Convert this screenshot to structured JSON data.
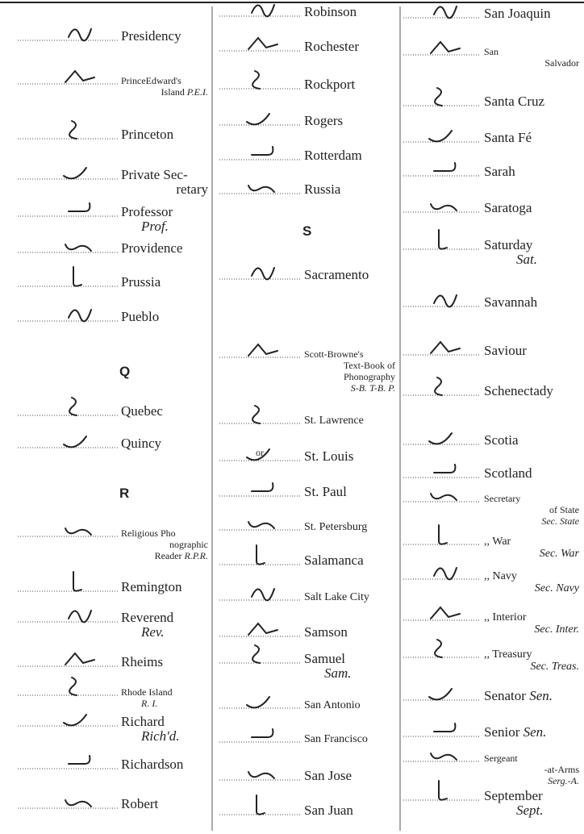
{
  "columns": [
    {
      "items": [
        {
          "lines": [
            "Presidency"
          ]
        },
        {
          "lines": [
            "PrinceEdward's",
            "Island"
          ],
          "abbr": "P.E.I."
        },
        {
          "lines": [
            "Princeton"
          ]
        },
        {
          "lines": [
            "Private Sec-",
            "retary"
          ]
        },
        {
          "lines": [
            "Professor"
          ],
          "abbr": "Prof."
        },
        {
          "lines": [
            "Providence"
          ]
        },
        {
          "lines": [
            "Prussia"
          ]
        },
        {
          "lines": [
            "Pueblo"
          ]
        },
        {
          "heading": "Q"
        },
        {
          "lines": [
            "Quebec"
          ]
        },
        {
          "lines": [
            "Quincy"
          ]
        },
        {
          "heading": "R"
        },
        {
          "lines": [
            "Religious Pho",
            "nographic",
            "Reader"
          ],
          "abbr": "R.P.R."
        },
        {
          "lines": [
            "Remington"
          ]
        },
        {
          "lines": [
            "Reverend"
          ],
          "abbr": "Rev."
        },
        {
          "lines": [
            "Rheims"
          ]
        },
        {
          "lines": [
            "Rhode Island"
          ],
          "abbr": "R. I."
        },
        {
          "lines": [
            "Richard"
          ],
          "abbr": "Rich'd."
        },
        {
          "lines": [
            "Richardson"
          ]
        },
        {
          "lines": [
            "Robert"
          ]
        }
      ]
    },
    {
      "items": [
        {
          "lines": [
            "Robinson"
          ]
        },
        {
          "lines": [
            "Rochester"
          ]
        },
        {
          "lines": [
            "Rockport"
          ]
        },
        {
          "lines": [
            "Rogers"
          ]
        },
        {
          "lines": [
            "Rotterdam"
          ]
        },
        {
          "lines": [
            "Russia"
          ]
        },
        {
          "heading": "S"
        },
        {
          "lines": [
            "Sacramento"
          ]
        },
        {
          "lines": [
            "Scott-Browne's",
            "Text-Book of",
            "Phonography"
          ],
          "abbr": "S-B. T-B. P."
        },
        {
          "lines": [
            "St. Lawrence"
          ]
        },
        {
          "lines": [
            "St. Louis"
          ],
          "note": "or"
        },
        {
          "lines": [
            "St. Paul"
          ]
        },
        {
          "lines": [
            "St. Petersburg"
          ]
        },
        {
          "lines": [
            "Salamanca"
          ]
        },
        {
          "lines": [
            "Salt Lake City"
          ]
        },
        {
          "lines": [
            "Samson"
          ]
        },
        {
          "lines": [
            "Samuel"
          ],
          "abbr": "Sam."
        },
        {
          "lines": [
            "San Antonio"
          ]
        },
        {
          "lines": [
            "San Francisco"
          ]
        },
        {
          "lines": [
            "San Jose"
          ]
        },
        {
          "lines": [
            "San Juan"
          ]
        }
      ]
    },
    {
      "items": [
        {
          "lines": [
            "San Joaquin"
          ]
        },
        {
          "lines": [
            "San",
            "Salvador"
          ]
        },
        {
          "lines": [
            "Santa Cruz"
          ]
        },
        {
          "lines": [
            "Santa Fé"
          ]
        },
        {
          "lines": [
            "Sarah"
          ]
        },
        {
          "lines": [
            "Saratoga"
          ]
        },
        {
          "lines": [
            "Saturday"
          ],
          "abbr": "Sat."
        },
        {
          "lines": [
            "Savannah"
          ]
        },
        {
          "lines": [
            "Saviour"
          ]
        },
        {
          "lines": [
            "Schenectady"
          ]
        },
        {
          "lines": [
            "Scotia"
          ]
        },
        {
          "lines": [
            "Scotland"
          ]
        },
        {
          "lines": [
            "Secretary",
            "of State"
          ],
          "abbr": "Sec. State"
        },
        {
          "lines": [
            ",, War"
          ],
          "abbr": "Sec. War"
        },
        {
          "lines": [
            ",, Navy"
          ],
          "abbr": "Sec. Navy"
        },
        {
          "lines": [
            ",, Interior"
          ],
          "abbr": "Sec. Inter."
        },
        {
          "lines": [
            ",, Treasury"
          ],
          "abbr": "Sec. Treas."
        },
        {
          "lines": [
            "Senator"
          ],
          "abbr": "Sen."
        },
        {
          "lines": [
            "Senior"
          ],
          "abbr": "Sen."
        },
        {
          "lines": [
            "Sergeant",
            "-at-Arms"
          ],
          "abbr": "Serg.-A."
        },
        {
          "lines": [
            "September"
          ],
          "abbr": "Sept."
        }
      ]
    }
  ]
}
